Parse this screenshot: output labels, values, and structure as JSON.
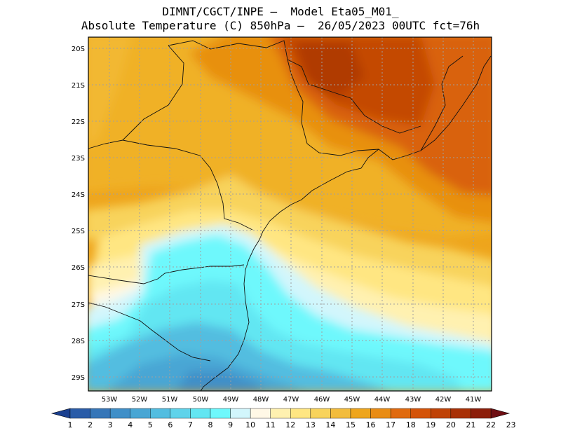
{
  "title": {
    "line1": "DIMNT/CGCT/INPE –  Model Eta05_M01_",
    "line2": "Absolute Temperature (C) 850hPa –  26/05/2023 00UTC fct=76h"
  },
  "axes": {
    "lat_labels": [
      "20S",
      "21S",
      "22S",
      "23S",
      "24S",
      "25S",
      "26S",
      "27S",
      "28S",
      "29S"
    ],
    "lon_labels": [
      "53W",
      "52W",
      "51W",
      "50W",
      "49W",
      "48W",
      "47W",
      "46W",
      "45W",
      "44W",
      "43W",
      "42W",
      "41W"
    ]
  },
  "colorbar": {
    "labels": [
      "1",
      "2",
      "3",
      "4",
      "5",
      "6",
      "7",
      "8",
      "9",
      "10",
      "11",
      "12",
      "13",
      "14",
      "15",
      "16",
      "17",
      "18",
      "19",
      "20",
      "21",
      "22",
      "23"
    ],
    "colors": [
      "#1a3f8f",
      "#2a5ca8",
      "#3676b8",
      "#3f8fc8",
      "#48a6d4",
      "#52bde0",
      "#5fd3ea",
      "#62e6f2",
      "#6ef8fc",
      "#d2f6fc",
      "#fff8e6",
      "#fff1b0",
      "#ffe682",
      "#f8d35c",
      "#f2bc3c",
      "#eea51c",
      "#e98c14",
      "#e06a0e",
      "#d45308",
      "#bf4206",
      "#a83006",
      "#8c1e0a",
      "#6e0e12"
    ]
  }
}
